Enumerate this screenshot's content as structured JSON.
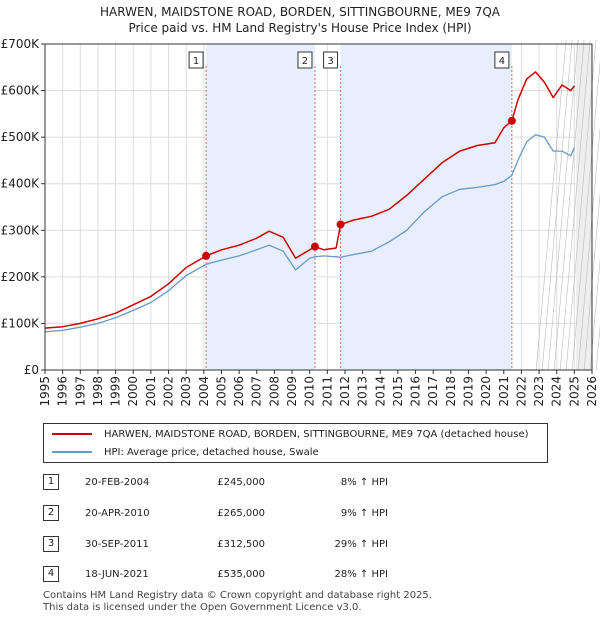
{
  "chart_data": {
    "type": "line",
    "title": "HARWEN, MAIDSTONE ROAD, BORDEN, SITTINGBOURNE, ME9 7QA",
    "subtitle": "Price paid vs. HM Land Registry's House Price Index (HPI)",
    "x_range": [
      1995,
      2026
    ],
    "ylim": [
      0,
      700000
    ],
    "y_ticks": [
      0,
      100000,
      200000,
      300000,
      400000,
      500000,
      600000,
      700000
    ],
    "y_tick_labels": [
      "£0",
      "£100K",
      "£200K",
      "£300K",
      "£400K",
      "£500K",
      "£600K",
      "£700K"
    ],
    "x_tick_labels": [
      "1995",
      "1996",
      "1997",
      "1998",
      "1999",
      "2000",
      "2001",
      "2002",
      "2003",
      "2004",
      "2005",
      "2006",
      "2007",
      "2008",
      "2009",
      "2010",
      "2011",
      "2012",
      "2013",
      "2014",
      "2015",
      "2016",
      "2017",
      "2018",
      "2019",
      "2020",
      "2021",
      "2022",
      "2023",
      "2024",
      "2025",
      "2026"
    ],
    "colors": {
      "property": "#cc0000",
      "hpi": "#6699cc",
      "shade": "#e8eefb",
      "marker_line": "#dd6666"
    },
    "shaded_spans": [
      [
        2004.13,
        2010.3
      ],
      [
        2011.75,
        2021.46
      ]
    ],
    "forecast_from": 2025.1,
    "series": [
      {
        "name": "HARWEN, MAIDSTONE ROAD, BORDEN, SITTINGBOURNE, ME9 7QA (detached house)",
        "x": [
          1995.0,
          1996.0,
          1997.0,
          1998.0,
          1999.0,
          2000.0,
          2001.0,
          2002.0,
          2003.0,
          2004.13,
          2005.0,
          2006.0,
          2007.0,
          2007.7,
          2008.5,
          2009.2,
          2010.0,
          2010.3,
          2010.8,
          2011.5,
          2011.75,
          2012.5,
          2013.5,
          2014.5,
          2015.5,
          2016.5,
          2017.5,
          2018.5,
          2019.5,
          2020.5,
          2021.0,
          2021.46,
          2021.8,
          2022.3,
          2022.8,
          2023.3,
          2023.8,
          2024.3,
          2024.8,
          2025.0
        ],
        "values": [
          90000,
          93000,
          100000,
          110000,
          122000,
          140000,
          158000,
          185000,
          220000,
          245000,
          258000,
          268000,
          283000,
          298000,
          285000,
          240000,
          258000,
          265000,
          258000,
          262000,
          312500,
          322000,
          330000,
          345000,
          375000,
          410000,
          445000,
          470000,
          482000,
          488000,
          520000,
          535000,
          580000,
          625000,
          640000,
          618000,
          585000,
          612000,
          600000,
          610000
        ]
      },
      {
        "name": "HPI: Average price, detached house, Swale",
        "x": [
          1995.0,
          1996.0,
          1997.0,
          1998.0,
          1999.0,
          2000.0,
          2001.0,
          2002.0,
          2003.0,
          2004.13,
          2005.0,
          2006.0,
          2007.0,
          2007.7,
          2008.5,
          2009.2,
          2010.0,
          2010.3,
          2010.8,
          2011.5,
          2011.75,
          2012.5,
          2013.5,
          2014.5,
          2015.5,
          2016.5,
          2017.5,
          2018.5,
          2019.5,
          2020.5,
          2021.0,
          2021.46,
          2021.8,
          2022.3,
          2022.8,
          2023.3,
          2023.8,
          2024.3,
          2024.8,
          2025.0
        ],
        "values": [
          82000,
          85000,
          92000,
          100000,
          112000,
          128000,
          145000,
          170000,
          203000,
          227000,
          236000,
          245000,
          258000,
          268000,
          255000,
          215000,
          240000,
          243000,
          245000,
          243000,
          242000,
          248000,
          255000,
          275000,
          300000,
          340000,
          372000,
          388000,
          392000,
          398000,
          405000,
          418000,
          450000,
          490000,
          505000,
          500000,
          470000,
          470000,
          460000,
          478000
        ]
      }
    ],
    "transactions": [
      {
        "num": "1",
        "x": 2004.13,
        "price_value": 245000,
        "date": "20-FEB-2004",
        "price": "£245,000",
        "hpi": "8% ↑ HPI"
      },
      {
        "num": "2",
        "x": 2010.3,
        "price_value": 265000,
        "date": "20-APR-2010",
        "price": "£265,000",
        "hpi": "9% ↑ HPI"
      },
      {
        "num": "3",
        "x": 2011.75,
        "price_value": 312500,
        "date": "30-SEP-2011",
        "price": "£312,500",
        "hpi": "29% ↑ HPI"
      },
      {
        "num": "4",
        "x": 2021.46,
        "price_value": 535000,
        "date": "18-JUN-2021",
        "price": "£535,000",
        "hpi": "28% ↑ HPI"
      }
    ]
  },
  "legend": {
    "property_label": "HARWEN, MAIDSTONE ROAD, BORDEN, SITTINGBOURNE, ME9 7QA (detached house)",
    "hpi_label": "HPI: Average price, detached house, Swale"
  },
  "footer": {
    "line1": "Contains HM Land Registry data © Crown copyright and database right 2025.",
    "line2": "This data is licensed under the Open Government Licence v3.0."
  }
}
